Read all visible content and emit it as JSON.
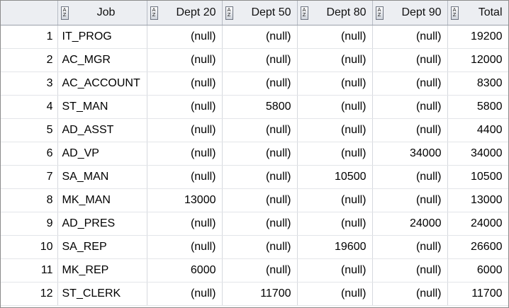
{
  "grid": {
    "columns": [
      "Job",
      "Dept 20",
      "Dept 50",
      "Dept 80",
      "Dept 90",
      "Total"
    ],
    "sort_icon_glyph_top": "A",
    "sort_icon_glyph_bottom": "Z",
    "rows": [
      {
        "rownum": "1",
        "job": "IT_PROG",
        "d20": "(null)",
        "d50": "(null)",
        "d80": "(null)",
        "d90": "(null)",
        "total": "19200"
      },
      {
        "rownum": "2",
        "job": "AC_MGR",
        "d20": "(null)",
        "d50": "(null)",
        "d80": "(null)",
        "d90": "(null)",
        "total": "12000"
      },
      {
        "rownum": "3",
        "job": "AC_ACCOUNT",
        "d20": "(null)",
        "d50": "(null)",
        "d80": "(null)",
        "d90": "(null)",
        "total": "8300"
      },
      {
        "rownum": "4",
        "job": "ST_MAN",
        "d20": "(null)",
        "d50": "5800",
        "d80": "(null)",
        "d90": "(null)",
        "total": "5800"
      },
      {
        "rownum": "5",
        "job": "AD_ASST",
        "d20": "(null)",
        "d50": "(null)",
        "d80": "(null)",
        "d90": "(null)",
        "total": "4400"
      },
      {
        "rownum": "6",
        "job": "AD_VP",
        "d20": "(null)",
        "d50": "(null)",
        "d80": "(null)",
        "d90": "34000",
        "total": "34000"
      },
      {
        "rownum": "7",
        "job": "SA_MAN",
        "d20": "(null)",
        "d50": "(null)",
        "d80": "10500",
        "d90": "(null)",
        "total": "10500"
      },
      {
        "rownum": "8",
        "job": "MK_MAN",
        "d20": "13000",
        "d50": "(null)",
        "d80": "(null)",
        "d90": "(null)",
        "total": "13000"
      },
      {
        "rownum": "9",
        "job": "AD_PRES",
        "d20": "(null)",
        "d50": "(null)",
        "d80": "(null)",
        "d90": "24000",
        "total": "24000"
      },
      {
        "rownum": "10",
        "job": "SA_REP",
        "d20": "(null)",
        "d50": "(null)",
        "d80": "19600",
        "d90": "(null)",
        "total": "26600"
      },
      {
        "rownum": "11",
        "job": "MK_REP",
        "d20": "6000",
        "d50": "(null)",
        "d80": "(null)",
        "d90": "(null)",
        "total": "6000"
      },
      {
        "rownum": "12",
        "job": "ST_CLERK",
        "d20": "(null)",
        "d50": "11700",
        "d80": "(null)",
        "d90": "(null)",
        "total": "11700"
      }
    ]
  }
}
